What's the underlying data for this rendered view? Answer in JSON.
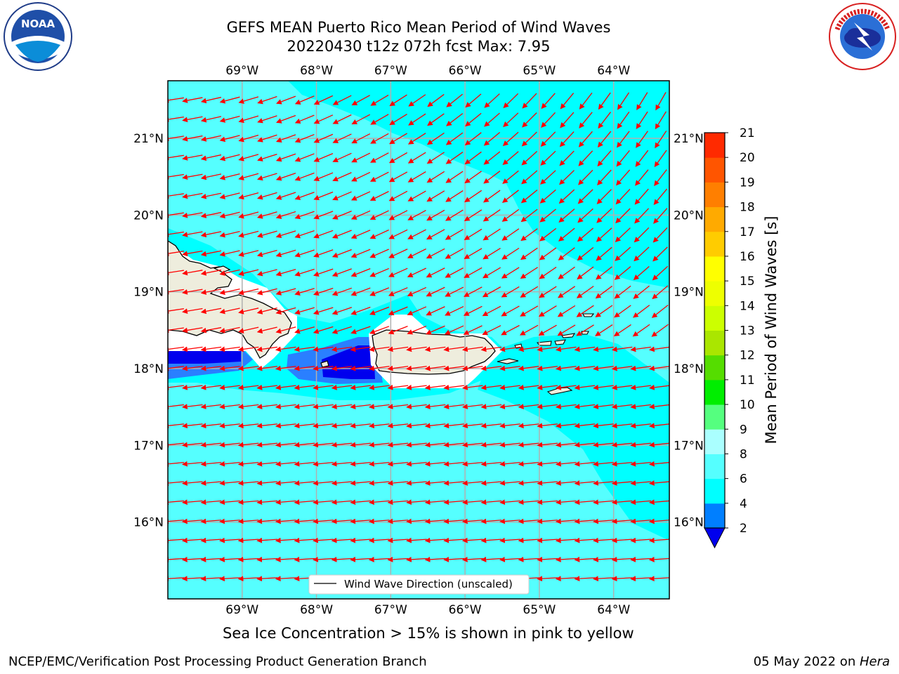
{
  "header": {
    "title_line1": "GEFS MEAN Puerto Rico Mean Period of Wind Waves",
    "title_line2": "20220430 t12z 072h fcst   Max: 7.95"
  },
  "logos": {
    "left": "noaa-logo",
    "right": "nws-logo",
    "left_text": "NOAA",
    "left_ring_text": "NATIONAL OCEANIC AND ATMOSPHERIC ADMINISTRATION · U.S. DEPARTMENT OF COMMERCE",
    "right_ring_text": "NATIONAL WEATHER SERVICE"
  },
  "map": {
    "lon_ticks": [
      "69°W",
      "68°W",
      "67°W",
      "66°W",
      "65°W",
      "64°W"
    ],
    "lat_ticks": [
      "21°N",
      "20°N",
      "19°N",
      "18°N",
      "17°N",
      "16°N"
    ],
    "lon_values": [
      -69,
      -68,
      -67,
      -66,
      -65,
      -64
    ],
    "lat_values": [
      21,
      20,
      19,
      18,
      17,
      16
    ],
    "extent": {
      "lon_min": -70,
      "lon_max": -63.25,
      "lat_min": 15.0,
      "lat_max": 21.75
    },
    "legend_label": "Wind Wave Direction (unscaled)",
    "colors": {
      "land": "#eeeddd",
      "ocean_6_8": "#55ffff",
      "ocean_4_6": "#00ffff",
      "ocean_2_4": "#2a7fff",
      "ocean_lt_2": "#0000ee",
      "arrows": "#ff0000",
      "grid": "#b0b0b0"
    }
  },
  "colorbar": {
    "label": "Mean Period of Wind Waves [s]",
    "ticks": [
      "2",
      "4",
      "6",
      "8",
      "9",
      "10",
      "11",
      "12",
      "13",
      "14",
      "15",
      "16",
      "17",
      "18",
      "19",
      "20",
      "21"
    ],
    "colors": [
      "#0000ff",
      "#007fff",
      "#00ffff",
      "#55ffff",
      "#aaffff",
      "#55ff7f",
      "#00ee00",
      "#55dd00",
      "#aae600",
      "#ccff00",
      "#eeff00",
      "#ffff00",
      "#ffcc00",
      "#ffaa00",
      "#ff7f00",
      "#ff5500",
      "#ff2a00",
      "#ff0000"
    ],
    "extend_color": "#0000ee"
  },
  "notes": {
    "sea_ice": "Sea Ice Concentration > 15% is shown in pink to yellow",
    "footer_left": "NCEP/EMC/Verification Post Processing Product Generation Branch",
    "footer_date": "05 May 2022 on ",
    "footer_host": "Hera"
  }
}
